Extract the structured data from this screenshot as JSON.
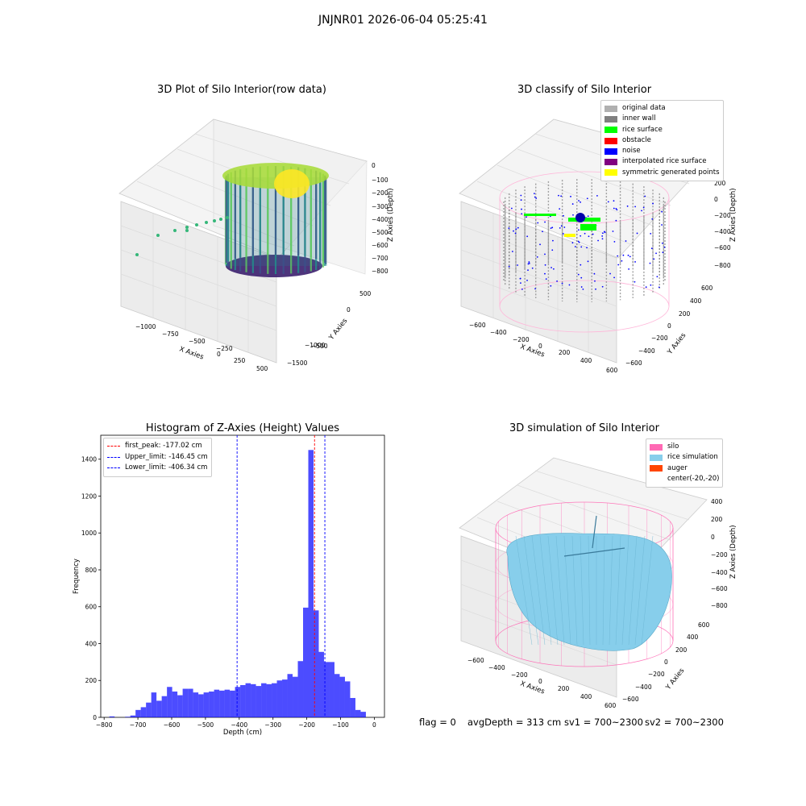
{
  "suptitle": "JNJNR01 2026-06-04 05:25:41",
  "footer": {
    "flag": "flag = 0",
    "avg": "avgDepth = 313 cm",
    "sv1": "sv1 = 700~2300",
    "sv2": "sv2 = 700~2300"
  },
  "colors": {
    "original": "#b0b0b0",
    "inner_wall": "#808080",
    "rice_surface": "#00ff00",
    "obstacle": "#ff0000",
    "noise": "#0000ff",
    "interpolated": "#800080",
    "symmetric": "#ffff00",
    "silo": "#ff69b4",
    "rice_sim": "#87ceeb",
    "auger": "#ff4500",
    "hist": "#0000ff"
  },
  "chart_data": [
    {
      "type": "scatter",
      "title": "3D Plot of Silo Interior(row data)",
      "xlabel": "X Axies",
      "ylabel": "Y Axies",
      "zlabel": "Z Axies (Depth)",
      "xticks": [
        "−1000",
        "−750",
        "−500",
        "−250",
        "0",
        "250",
        "500"
      ],
      "yticks": [
        "500",
        "0",
        "−500",
        "−1000",
        "−1500"
      ],
      "zticks": [
        "0",
        "−100",
        "−200",
        "−300",
        "−400",
        "−500",
        "−600",
        "−700",
        "−800"
      ],
      "colormap": "viridis"
    },
    {
      "type": "scatter",
      "title": "3D classify of Silo Interior",
      "xlabel": "X Axies",
      "ylabel": "Y Axies",
      "zlabel": "Z Axies (Depth)",
      "xticks": [
        "−600",
        "−400",
        "−200",
        "0",
        "200",
        "400",
        "600"
      ],
      "yticks": [
        "600",
        "400",
        "200",
        "0",
        "−200",
        "−400",
        "−600"
      ],
      "zticks": [
        "200",
        "0",
        "−200",
        "−400",
        "−600",
        "−800"
      ],
      "legend": [
        "original data",
        "inner wall",
        "rice surface",
        "obstacle",
        "noise",
        "interpolated rice surface",
        "symmetric generated points"
      ],
      "legend_position": "top-right"
    },
    {
      "type": "bar",
      "title": "Histogram of Z-Axies (Height) Values",
      "xlabel": "Depth (cm)",
      "ylabel": "Frequency",
      "xlim": [
        -810,
        30
      ],
      "ylim": [
        0,
        1530
      ],
      "xticks": [
        -800,
        -700,
        -600,
        -500,
        -400,
        -300,
        -200,
        -100,
        0
      ],
      "yticks": [
        0,
        200,
        400,
        600,
        800,
        1000,
        1200,
        1400
      ],
      "bin_edges_start": -800,
      "bin_width": 15.5,
      "values": [
        0,
        5,
        0,
        0,
        3,
        10,
        40,
        55,
        80,
        135,
        90,
        115,
        165,
        140,
        120,
        155,
        155,
        135,
        125,
        135,
        140,
        150,
        145,
        150,
        145,
        165,
        175,
        185,
        180,
        170,
        185,
        180,
        185,
        200,
        205,
        235,
        220,
        305,
        595,
        1450,
        580,
        355,
        300,
        300,
        235,
        220,
        195,
        105,
        40,
        30
      ],
      "vlines": [
        {
          "label": "first_peak: -177.02 cm",
          "x": -177.02,
          "color": "#ff0000"
        },
        {
          "label": "Upper_limit: -146.45 cm",
          "x": -146.45,
          "color": "#0000ff"
        },
        {
          "label": "Lower_limit: -406.34 cm",
          "x": -406.34,
          "color": "#0000ff"
        }
      ],
      "legend_position": "top-left"
    },
    {
      "type": "scatter",
      "title": "3D simulation of Silo Interior",
      "xlabel": "X Axies",
      "ylabel": "Y Axies",
      "zlabel": "Z Axies (Depth)",
      "xticks": [
        "−600",
        "−400",
        "−200",
        "0",
        "200",
        "400",
        "600"
      ],
      "yticks": [
        "600",
        "400",
        "200",
        "0",
        "−200",
        "−400",
        "−600"
      ],
      "zticks": [
        "400",
        "200",
        "0",
        "−200",
        "−400",
        "−600",
        "−800"
      ],
      "legend": [
        "silo",
        "rice simulation",
        "auger",
        "center(-20,-20)"
      ],
      "legend_position": "top-right"
    }
  ]
}
